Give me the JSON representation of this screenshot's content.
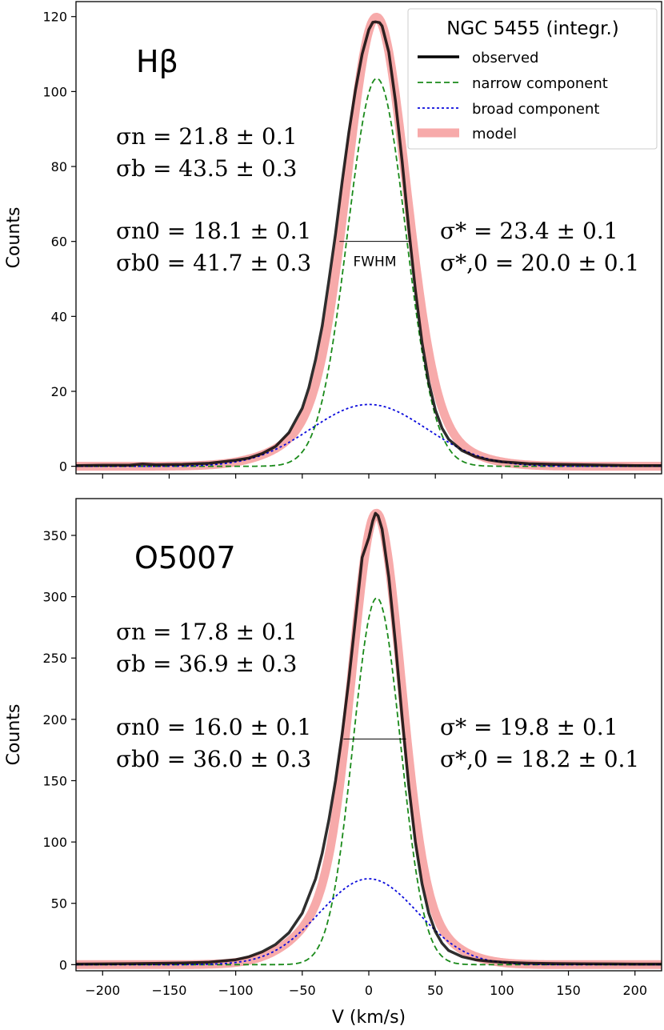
{
  "figure": {
    "xlabel": "V (km/s)",
    "xticks": [
      "−200",
      "−150",
      "−100",
      "−50",
      "0",
      "50",
      "100",
      "150",
      "200"
    ]
  },
  "legend": {
    "title": "NGC 5455 (integr.)",
    "entries": [
      {
        "label": "observed",
        "color": "#000000",
        "style": "solid"
      },
      {
        "label": "narrow component",
        "color": "#1a8a1a",
        "style": "dashed"
      },
      {
        "label": "broad component",
        "color": "#0a0adc",
        "style": "dotted"
      },
      {
        "label": "model",
        "color": "#f7aaaa",
        "style": "thick"
      }
    ]
  },
  "chart_data": [
    {
      "type": "line",
      "title": "Hβ",
      "line_name": "Hβ",
      "xlabel": "",
      "ylabel": "Counts",
      "xlim": [
        -220,
        220
      ],
      "ylim": [
        -2,
        124
      ],
      "yticks": [
        0,
        20,
        40,
        60,
        80,
        100,
        120
      ],
      "sigma": {
        "left": [
          "σn = 21.8 ± 0.1",
          "σb = 43.5 ± 0.3",
          "σn0 = 18.1 ± 0.1",
          "σb0 = 41.7 ± 0.3"
        ],
        "right": [
          "σ* = 23.4 ± 0.1",
          "σ*,0 = 20.0 ± 0.1"
        ]
      },
      "fwhm": {
        "label": "FWHM",
        "y": 60,
        "x_start": -22,
        "x_end": 31
      },
      "series": [
        {
          "name": "narrow component",
          "kind": "gaussian",
          "amplitude": 103.5,
          "center": 6,
          "sigma": 21.8
        },
        {
          "name": "broad component",
          "kind": "gaussian",
          "amplitude": 16.5,
          "center": 0,
          "sigma": 43.5
        },
        {
          "name": "observed",
          "x": [
            -220,
            -200,
            -180,
            -170,
            -160,
            -140,
            -120,
            -100,
            -90,
            -80,
            -70,
            -60,
            -50,
            -45,
            -40,
            -35,
            -30,
            -25,
            -20,
            -15,
            -10,
            -5,
            0,
            3,
            5,
            8,
            10,
            15,
            20,
            25,
            30,
            35,
            40,
            45,
            50,
            55,
            60,
            70,
            80,
            90,
            100,
            120,
            140,
            160,
            180,
            200,
            220
          ],
          "y": [
            0.2,
            0.3,
            0.3,
            0.6,
            0.4,
            0.5,
            0.8,
            1.6,
            2.2,
            3.4,
            5.3,
            9.0,
            15.5,
            21.0,
            28.5,
            37.5,
            49.5,
            62.0,
            76.0,
            89.0,
            100.5,
            110.0,
            116.5,
            118.5,
            118.6,
            118.4,
            117.5,
            110.5,
            97.5,
            81.5,
            63.5,
            47.0,
            33.0,
            22.5,
            15.0,
            10.2,
            7.2,
            4.2,
            2.6,
            1.7,
            1.2,
            0.7,
            0.5,
            0.4,
            0.3,
            0.2,
            0.2
          ]
        }
      ]
    },
    {
      "type": "line",
      "title": "O5007",
      "line_name": "O5007",
      "xlabel": "V (km/s)",
      "ylabel": "Counts",
      "xlim": [
        -220,
        220
      ],
      "ylim": [
        -5,
        380
      ],
      "yticks": [
        0,
        50,
        100,
        150,
        200,
        250,
        300,
        350
      ],
      "sigma": {
        "left": [
          "σn = 17.8 ± 0.1",
          "σb = 36.9 ± 0.3",
          "σn0 = 16.0 ± 0.1",
          "σb0 = 36.0 ± 0.3"
        ],
        "right": [
          "σ* = 19.8 ± 0.1",
          "σ*,0 = 18.2 ± 0.1"
        ]
      },
      "fwhm": {
        "label": "",
        "y": 184,
        "x_start": -19,
        "x_end": 28
      },
      "series": [
        {
          "name": "narrow component",
          "kind": "gaussian",
          "amplitude": 299,
          "center": 6,
          "sigma": 17.8
        },
        {
          "name": "broad component",
          "kind": "gaussian",
          "amplitude": 70,
          "center": 0,
          "sigma": 36.9
        },
        {
          "name": "observed",
          "x": [
            -220,
            -200,
            -180,
            -160,
            -140,
            -120,
            -100,
            -90,
            -80,
            -70,
            -60,
            -50,
            -40,
            -35,
            -30,
            -25,
            -20,
            -15,
            -10,
            -5,
            0,
            3,
            5,
            7,
            10,
            15,
            20,
            25,
            30,
            35,
            40,
            45,
            50,
            55,
            60,
            70,
            80,
            90,
            100,
            120,
            140,
            160,
            180,
            200,
            220
          ],
          "y": [
            0.5,
            0.6,
            0.8,
            1.0,
            1.3,
            2.0,
            4.0,
            6.5,
            10.5,
            16.5,
            26.0,
            42.0,
            70.0,
            91.0,
            118.0,
            150.0,
            188.0,
            232.0,
            282.0,
            332.0,
            348.0,
            362.0,
            368.0,
            366.0,
            355.0,
            316.0,
            262.0,
            202.0,
            146.0,
            100.0,
            66.0,
            42.0,
            27.0,
            17.5,
            11.5,
            6.5,
            4.0,
            2.8,
            2.0,
            1.2,
            0.9,
            0.7,
            0.6,
            0.5,
            0.5
          ]
        }
      ]
    }
  ]
}
